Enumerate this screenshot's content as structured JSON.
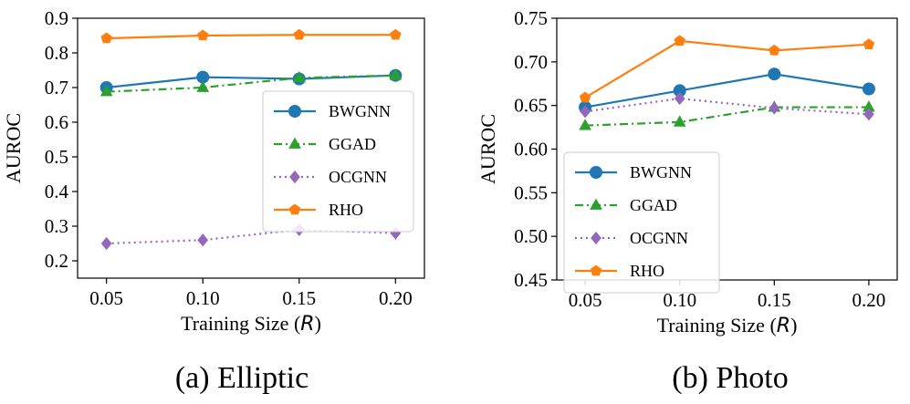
{
  "chart_data": [
    {
      "type": "line",
      "title": "",
      "caption": "(a) Elliptic",
      "xlabel_prefix": "Training Size (",
      "xlabel_var": "R",
      "xlabel_suffix": ")",
      "ylabel": "AUROC",
      "x": [
        0.05,
        0.1,
        0.15,
        0.2
      ],
      "xtick_labels": [
        "0.05",
        "0.10",
        "0.15",
        "0.20"
      ],
      "ylim": [
        0.15,
        0.9
      ],
      "yticks": [
        0.2,
        0.3,
        0.4,
        0.5,
        0.6,
        0.7,
        0.8,
        0.9
      ],
      "ytick_labels": [
        "0.2",
        "0.3",
        "0.4",
        "0.5",
        "0.6",
        "0.7",
        "0.8",
        "0.9"
      ],
      "legend_position": "center-right",
      "series": [
        {
          "name": "BWGNN",
          "values": [
            0.7,
            0.73,
            0.725,
            0.735
          ],
          "color": "#1f77b4",
          "marker": "circle",
          "dash": "solid"
        },
        {
          "name": "GGAD",
          "values": [
            0.688,
            0.7,
            0.728,
            0.735
          ],
          "color": "#2ca02c",
          "marker": "triangle",
          "dash": "dashdot"
        },
        {
          "name": "OCGNN",
          "values": [
            0.25,
            0.26,
            0.29,
            0.28
          ],
          "color": "#9467bd",
          "marker": "diamond",
          "dash": "dotted"
        },
        {
          "name": "RHO",
          "values": [
            0.842,
            0.85,
            0.852,
            0.852
          ],
          "color": "#ff7f0e",
          "marker": "pentagon",
          "dash": "solid"
        }
      ]
    },
    {
      "type": "line",
      "title": "",
      "caption": "(b) Photo",
      "xlabel_prefix": "Training Size (",
      "xlabel_var": "R",
      "xlabel_suffix": ")",
      "ylabel": "AUROC",
      "x": [
        0.05,
        0.1,
        0.15,
        0.2
      ],
      "xtick_labels": [
        "0.05",
        "0.10",
        "0.15",
        "0.20"
      ],
      "ylim": [
        0.45,
        0.75
      ],
      "yticks": [
        0.45,
        0.5,
        0.55,
        0.6,
        0.65,
        0.7,
        0.75
      ],
      "ytick_labels": [
        "0.45",
        "0.50",
        "0.55",
        "0.60",
        "0.65",
        "0.70",
        "0.75"
      ],
      "legend_position": "lower-left",
      "series": [
        {
          "name": "BWGNN",
          "values": [
            0.648,
            0.667,
            0.686,
            0.669
          ],
          "color": "#1f77b4",
          "marker": "circle",
          "dash": "solid"
        },
        {
          "name": "GGAD",
          "values": [
            0.627,
            0.631,
            0.648,
            0.648
          ],
          "color": "#2ca02c",
          "marker": "triangle",
          "dash": "dashdot"
        },
        {
          "name": "OCGNN",
          "values": [
            0.643,
            0.658,
            0.647,
            0.64
          ],
          "color": "#9467bd",
          "marker": "diamond",
          "dash": "dotted"
        },
        {
          "name": "RHO",
          "values": [
            0.659,
            0.724,
            0.713,
            0.72
          ],
          "color": "#ff7f0e",
          "marker": "pentagon",
          "dash": "solid"
        }
      ]
    }
  ]
}
